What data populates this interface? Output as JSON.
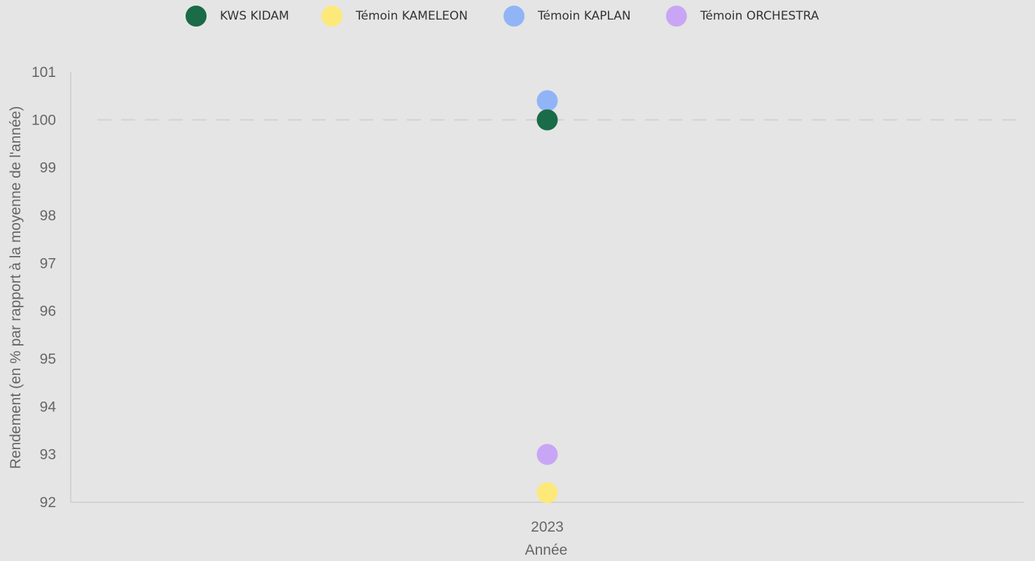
{
  "legend": [
    {
      "label": "KWS KIDAM",
      "color": "#1a6b47"
    },
    {
      "label": "Témoin KAMELEON",
      "color": "#fde87a"
    },
    {
      "label": "Témoin KAPLAN",
      "color": "#91b4f7"
    },
    {
      "label": "Témoin ORCHESTRA",
      "color": "#c9a6f5"
    }
  ],
  "chart_data": {
    "type": "scatter",
    "xlabel": "Année",
    "ylabel": "Rendement (en % par rapport à la moyenne de l'année)",
    "categories": [
      "2023"
    ],
    "ylim": [
      92,
      101
    ],
    "yticks": [
      "92",
      "93",
      "94",
      "95",
      "96",
      "97",
      "98",
      "99",
      "100",
      "101"
    ],
    "reference_line": 100,
    "series": [
      {
        "name": "KWS KIDAM",
        "color": "#1a6b47",
        "values": [
          100.0
        ]
      },
      {
        "name": "Témoin KAMELEON",
        "color": "#fde87a",
        "values": [
          92.2
        ]
      },
      {
        "name": "Témoin KAPLAN",
        "color": "#91b4f7",
        "values": [
          100.4
        ]
      },
      {
        "name": "Témoin ORCHESTRA",
        "color": "#c9a6f5",
        "values": [
          93.0
        ]
      }
    ]
  }
}
